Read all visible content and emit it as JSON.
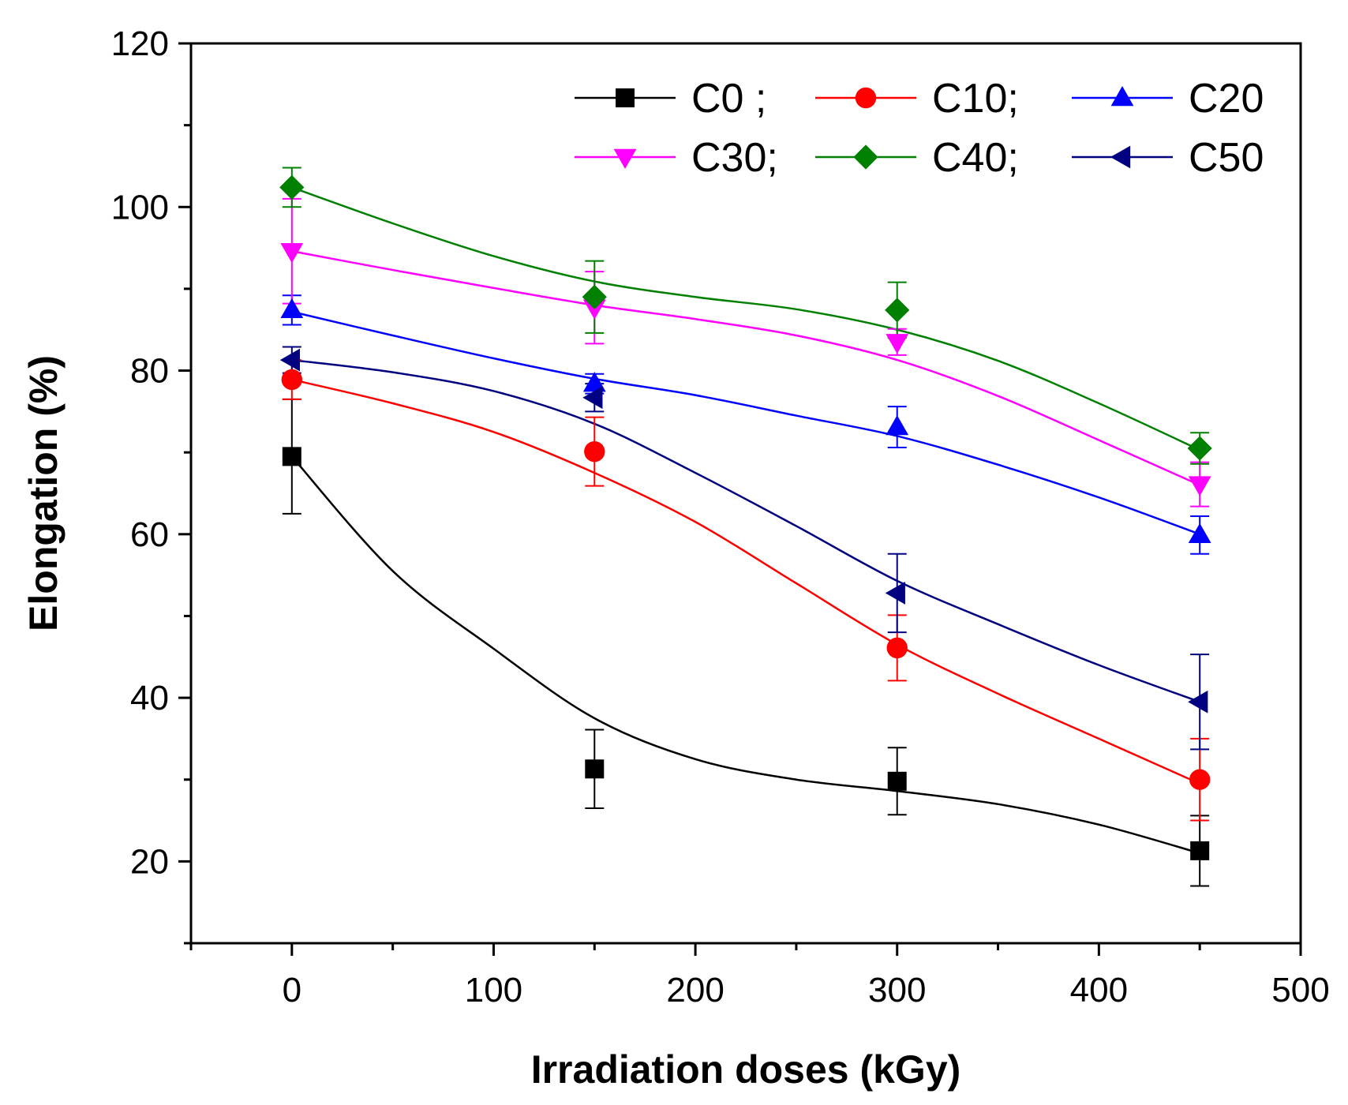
{
  "chart_data": {
    "type": "line",
    "title": "",
    "xlabel": "Irradiation doses (kGy)",
    "ylabel": "Elongation (%)",
    "xlim": [
      -50,
      500
    ],
    "ylim": [
      10,
      120
    ],
    "x_ticks": [
      0,
      100,
      200,
      300,
      400,
      500
    ],
    "x_minor_ticks": [
      -50,
      50,
      150,
      250,
      350,
      450
    ],
    "y_ticks": [
      20,
      40,
      60,
      80,
      100,
      120
    ],
    "y_minor_ticks": [
      10,
      30,
      50,
      70,
      90,
      110
    ],
    "x_tick_labels": [
      "0",
      "100",
      "200",
      "300",
      "400",
      "500"
    ],
    "y_tick_labels": [
      "20",
      "40",
      "60",
      "80",
      "100",
      "120"
    ],
    "grid": false,
    "legend_position": "top-right",
    "x": [
      0,
      150,
      300,
      450
    ],
    "series": [
      {
        "name": "C0",
        "legend_label": "C0 ;",
        "color": "#000000",
        "marker": "square",
        "values": [
          69.5,
          31.3,
          29.8,
          21.3
        ],
        "errors": [
          7.0,
          4.8,
          4.1,
          4.3
        ],
        "fit": [
          [
            0,
            69.5
          ],
          [
            50,
            55.5
          ],
          [
            100,
            46.0
          ],
          [
            150,
            37.5
          ],
          [
            200,
            32.5
          ],
          [
            250,
            30.0
          ],
          [
            300,
            28.6
          ],
          [
            350,
            27.0
          ],
          [
            400,
            24.5
          ],
          [
            450,
            21.0
          ]
        ]
      },
      {
        "name": "C10",
        "legend_label": "C10;",
        "color": "#ff0000",
        "marker": "circle",
        "values": [
          78.9,
          70.1,
          46.1,
          30.0
        ],
        "errors": [
          2.4,
          4.2,
          4.0,
          5.0
        ],
        "fit": [
          [
            0,
            78.9
          ],
          [
            50,
            76.0
          ],
          [
            100,
            72.5
          ],
          [
            150,
            67.5
          ],
          [
            200,
            61.5
          ],
          [
            250,
            54.0
          ],
          [
            300,
            46.5
          ],
          [
            350,
            40.5
          ],
          [
            400,
            35.0
          ],
          [
            450,
            29.5
          ]
        ]
      },
      {
        "name": "C20",
        "legend_label": "C20",
        "color": "#0000ff",
        "marker": "triangle-up",
        "values": [
          87.4,
          78.4,
          73.1,
          59.9
        ],
        "errors": [
          1.8,
          1.2,
          2.5,
          2.3
        ],
        "fit": [
          [
            0,
            87.2
          ],
          [
            50,
            84.3
          ],
          [
            100,
            81.5
          ],
          [
            150,
            79.0
          ],
          [
            200,
            77.0
          ],
          [
            250,
            74.5
          ],
          [
            300,
            72.0
          ],
          [
            350,
            68.5
          ],
          [
            400,
            64.5
          ],
          [
            450,
            60.0
          ]
        ]
      },
      {
        "name": "C30",
        "legend_label": "C30;",
        "color": "#ff00ff",
        "marker": "triangle-down",
        "values": [
          94.6,
          87.7,
          83.5,
          66.1
        ],
        "errors": [
          6.4,
          4.4,
          1.6,
          2.7
        ],
        "fit": [
          [
            0,
            94.6
          ],
          [
            50,
            92.3
          ],
          [
            100,
            90.1
          ],
          [
            150,
            88.0
          ],
          [
            200,
            86.3
          ],
          [
            250,
            84.3
          ],
          [
            300,
            81.3
          ],
          [
            350,
            76.9
          ],
          [
            400,
            71.5
          ],
          [
            450,
            66.0
          ]
        ]
      },
      {
        "name": "C40",
        "legend_label": "C40;",
        "color": "#008000",
        "marker": "diamond",
        "values": [
          102.4,
          89.0,
          87.4,
          70.5
        ],
        "errors": [
          2.4,
          4.4,
          3.4,
          1.9
        ],
        "fit": [
          [
            0,
            102.4
          ],
          [
            50,
            98.0
          ],
          [
            100,
            94.0
          ],
          [
            150,
            90.9
          ],
          [
            200,
            89.0
          ],
          [
            250,
            87.5
          ],
          [
            300,
            85.0
          ],
          [
            350,
            81.2
          ],
          [
            400,
            76.0
          ],
          [
            450,
            70.3
          ]
        ]
      },
      {
        "name": "C50",
        "legend_label": "C50",
        "color": "#000080",
        "marker": "triangle-left",
        "values": [
          81.3,
          76.7,
          52.8,
          39.5
        ],
        "errors": [
          1.6,
          1.7,
          4.8,
          5.8
        ],
        "fit": [
          [
            0,
            81.3
          ],
          [
            50,
            79.8
          ],
          [
            100,
            77.5
          ],
          [
            150,
            73.5
          ],
          [
            200,
            67.5
          ],
          [
            250,
            61.0
          ],
          [
            300,
            54.3
          ],
          [
            350,
            49.0
          ],
          [
            400,
            44.0
          ],
          [
            450,
            39.5
          ]
        ]
      }
    ]
  }
}
